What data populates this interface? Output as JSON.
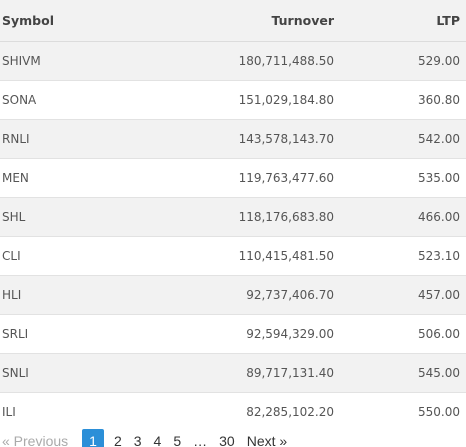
{
  "table": {
    "headers": {
      "symbol": "Symbol",
      "turnover": "Turnover",
      "ltp": "LTP"
    },
    "rows": [
      {
        "symbol": "SHIVM",
        "turnover": "180,711,488.50",
        "ltp": "529.00"
      },
      {
        "symbol": "SONA",
        "turnover": "151,029,184.80",
        "ltp": "360.80"
      },
      {
        "symbol": "RNLI",
        "turnover": "143,578,143.70",
        "ltp": "542.00"
      },
      {
        "symbol": "MEN",
        "turnover": "119,763,477.60",
        "ltp": "535.00"
      },
      {
        "symbol": "SHL",
        "turnover": "118,176,683.80",
        "ltp": "466.00"
      },
      {
        "symbol": "CLI",
        "turnover": "110,415,481.50",
        "ltp": "523.10"
      },
      {
        "symbol": "HLI",
        "turnover": "92,737,406.70",
        "ltp": "457.00"
      },
      {
        "symbol": "SRLI",
        "turnover": "92,594,329.00",
        "ltp": "506.00"
      },
      {
        "symbol": "SNLI",
        "turnover": "89,717,131.40",
        "ltp": "545.00"
      },
      {
        "symbol": "ILI",
        "turnover": "82,285,102.20",
        "ltp": "550.00"
      }
    ]
  },
  "pagination": {
    "previous": "« Previous",
    "pages": [
      "1",
      "2",
      "3",
      "4",
      "5"
    ],
    "current_page": "1",
    "ellipsis": "…",
    "last_page": "30",
    "next": "Next »"
  },
  "colors": {
    "active_page": "#2b8fd8",
    "stripe": "#f2f2f2"
  }
}
